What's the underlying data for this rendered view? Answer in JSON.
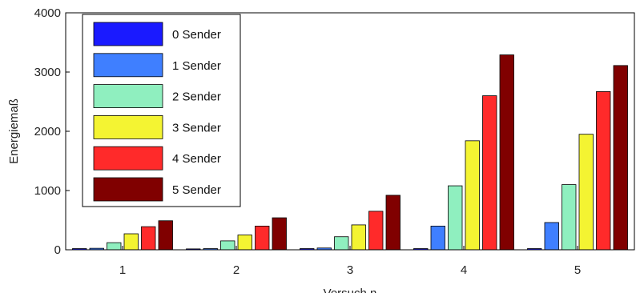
{
  "chart_data": {
    "type": "bar",
    "categories": [
      "1",
      "2",
      "3",
      "4",
      "5"
    ],
    "series": [
      {
        "name": "0 Sender",
        "color": "#1a1aff",
        "values": [
          20,
          15,
          20,
          20,
          20
        ]
      },
      {
        "name": "1 Sender",
        "color": "#3f7fff",
        "values": [
          25,
          20,
          30,
          400,
          460
        ]
      },
      {
        "name": "2 Sender",
        "color": "#8fefbf",
        "values": [
          120,
          150,
          220,
          1080,
          1100
        ]
      },
      {
        "name": "3 Sender",
        "color": "#f4f432",
        "values": [
          270,
          250,
          420,
          1840,
          1950
        ]
      },
      {
        "name": "4 Sender",
        "color": "#ff2a2a",
        "values": [
          390,
          400,
          650,
          2600,
          2670
        ]
      },
      {
        "name": "5 Sender",
        "color": "#800000",
        "values": [
          490,
          540,
          920,
          3290,
          3110
        ]
      }
    ],
    "ylabel": "Energiemaß",
    "xlabel": "Versuch n",
    "ylim": [
      0,
      4000
    ],
    "yticks": [
      "0",
      "1000",
      "2000",
      "3000",
      "4000"
    ],
    "grid": false,
    "legend_position": "top-left"
  }
}
